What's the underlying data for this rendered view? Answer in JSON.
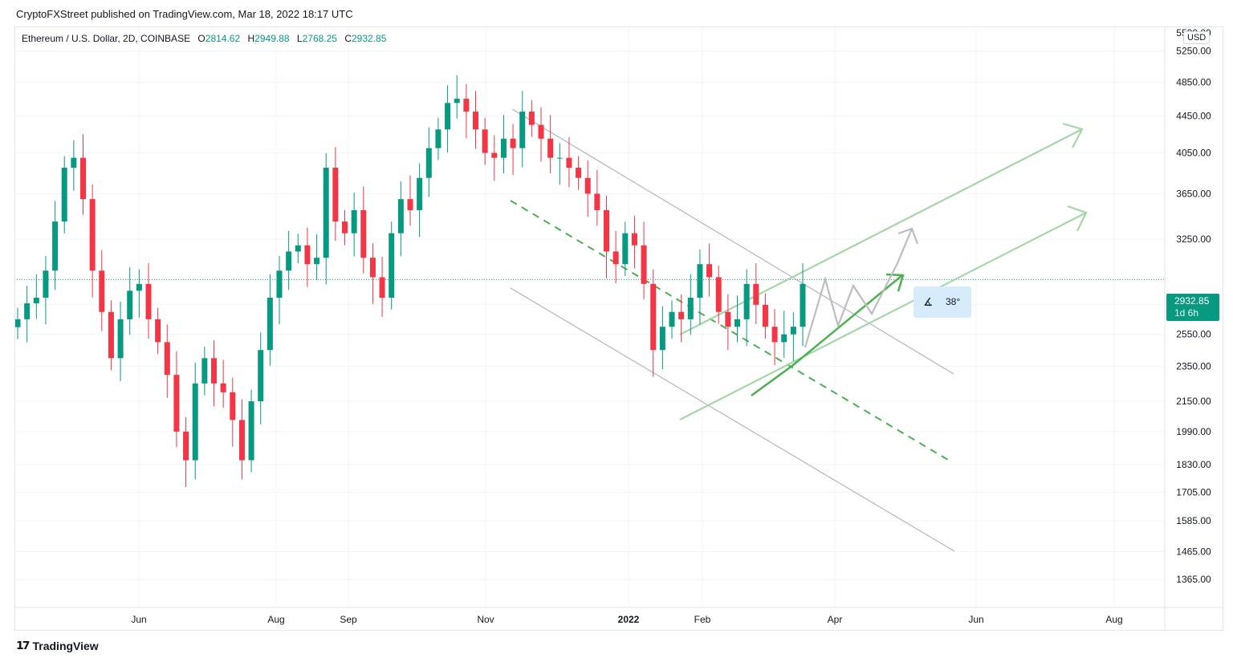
{
  "header": {
    "published_line": "CryptoFXStreet published on TradingView.com, Mar 18, 2022 18:17 UTC"
  },
  "legend": {
    "symbol": "Ethereum / U.S. Dollar, 2D, COINBASE",
    "open_label": "O",
    "open": "2814.62",
    "high_label": "H",
    "high": "2949.88",
    "low_label": "L",
    "low": "2768.25",
    "close_label": "C",
    "close": "2932.85"
  },
  "currency_badge": "USD",
  "current_price": {
    "value": "2932.85",
    "countdown": "1d 6h"
  },
  "angle_tool": {
    "icon": "angle-icon",
    "label": "38°"
  },
  "footer": {
    "brand": "TradingView",
    "logo_icon": "tradingview-logo-icon"
  },
  "colors": {
    "up": "#089981",
    "down": "#f23645",
    "green_line": "#4caf50",
    "light_green_line": "#a5d6a7",
    "gray_line": "#b2b5be"
  },
  "chart_data": {
    "type": "candlestick",
    "title": "Ethereum / U.S. Dollar, 2D, COINBASE",
    "y_scale": "log",
    "ylim": [
      1300,
      5500
    ],
    "y_ticks": [
      "5500.00",
      "5250.00",
      "4850.00",
      "4450.00",
      "4050.00",
      "3650.00",
      "3250.00",
      "2750.00",
      "2550.00",
      "2350.00",
      "2150.00",
      "1990.00",
      "1830.00",
      "1705.00",
      "1585.00",
      "1465.00",
      "1365.00"
    ],
    "x_ticks": [
      "Jun",
      "Aug",
      "Sep",
      "Nov",
      "2022",
      "Feb",
      "Apr",
      "Jun",
      "Aug"
    ],
    "close_series": [
      2650,
      2760,
      2800,
      3000,
      3400,
      3900,
      4000,
      3600,
      3000,
      2700,
      2400,
      2650,
      2850,
      2900,
      2650,
      2500,
      2300,
      1990,
      1850,
      2250,
      2400,
      2250,
      2200,
      2050,
      1850,
      2150,
      2450,
      2800,
      3000,
      3150,
      3200,
      3050,
      3100,
      3900,
      3400,
      3300,
      3500,
      3100,
      2950,
      2800,
      3300,
      3600,
      3500,
      3800,
      4100,
      4300,
      4600,
      4650,
      4500,
      4300,
      4050,
      4000,
      4200,
      4100,
      4500,
      4350,
      4200,
      4000,
      4000,
      3900,
      3800,
      3650,
      3500,
      3150,
      3050,
      3300,
      3200,
      2900,
      2450,
      2600,
      2700,
      2650,
      2800,
      3050,
      2950,
      2700,
      2600,
      2650,
      2900,
      2750,
      2600,
      2500,
      2550,
      2600,
      2900
    ],
    "last_close": 2932.85,
    "annotations": [
      {
        "label": "38°",
        "kind": "angle"
      }
    ]
  }
}
